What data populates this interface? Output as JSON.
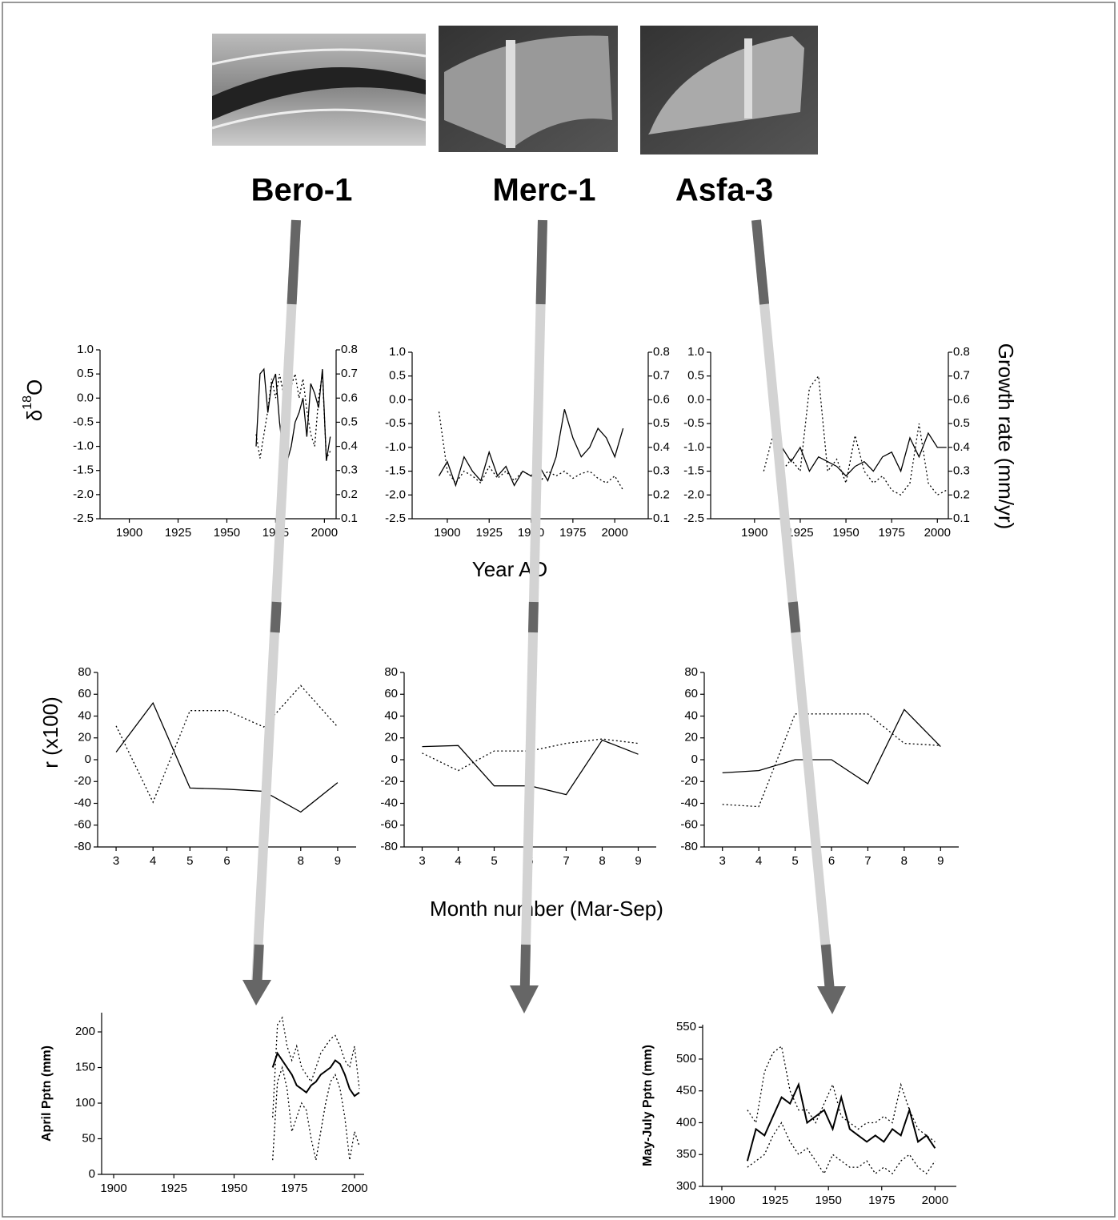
{
  "panels": [
    "Bero-1",
    "Merc-1",
    "Asfa-3"
  ],
  "labels": {
    "y_left": [
      "δ",
      "18",
      "O"
    ],
    "y_right": "Growth rate (mm/yr)",
    "x_top": "Year AD",
    "y_mid": "r (x100)",
    "x_mid": "Month number (Mar-Sep)"
  },
  "chart_data": [
    {
      "type": "line",
      "xlim": [
        1885,
        2006
      ],
      "xticks": [
        1900,
        1925,
        1950,
        1975,
        2000
      ],
      "ylim": [
        -2.5,
        1.0
      ],
      "yticks": [
        -2.5,
        {
          "value": -2,
          "label": "-2.0"
        },
        -1.5,
        {
          "value": -1,
          "label": "-1.0"
        },
        -0.5,
        {
          "value": 0,
          "label": "0.0"
        },
        0.5,
        {
          "value": 1,
          "label": "1.0"
        }
      ],
      "y2lim": [
        0.1,
        0.8
      ],
      "y2ticks": [
        0.1,
        0.2,
        0.3,
        0.4,
        0.5,
        0.6,
        0.7,
        0.8
      ],
      "series": [
        {
          "color": "#000000",
          "style": "solid",
          "x": [
            1965,
            1967,
            1969,
            1971,
            1973,
            1975,
            1977,
            1979,
            1981,
            1983,
            1985,
            1987,
            1989,
            1991,
            1993,
            1995,
            1997,
            1999,
            2001,
            2003
          ],
          "values": [
            -1.0,
            0.5,
            0.6,
            -0.3,
            0.3,
            0.5,
            -0.5,
            -1.2,
            -1.3,
            -1.0,
            -0.5,
            -0.3,
            0.0,
            -0.8,
            0.3,
            0.1,
            -0.2,
            0.6,
            -1.3,
            -0.8
          ]
        },
        {
          "color": "#000000",
          "style": "dotted",
          "axis": "y2",
          "x": [
            1965,
            1967,
            1969,
            1971,
            1973,
            1975,
            1977,
            1979,
            1981,
            1983,
            1985,
            1987,
            1989,
            1991,
            1993,
            1995,
            1997,
            1999,
            2001,
            2003
          ],
          "values": [
            0.45,
            0.35,
            0.45,
            0.55,
            0.68,
            0.6,
            0.7,
            0.62,
            0.72,
            0.65,
            0.7,
            0.6,
            0.68,
            0.55,
            0.45,
            0.4,
            0.6,
            0.7,
            0.35,
            0.38
          ]
        }
      ]
    },
    {
      "type": "line",
      "xlim": [
        1879,
        2020
      ],
      "xticks": [
        1900,
        1925,
        1950,
        1975,
        2000
      ],
      "ylim": [
        -2.5,
        1.0
      ],
      "yticks": [
        -2.5,
        {
          "value": -2,
          "label": "-2.0"
        },
        -1.5,
        {
          "value": -1,
          "label": "-1.0"
        },
        -0.5,
        {
          "value": 0,
          "label": "0.0"
        },
        0.5,
        {
          "value": 1,
          "label": "1.0"
        }
      ],
      "y2lim": [
        0.1,
        0.8
      ],
      "y2ticks": [
        0.1,
        0.2,
        0.3,
        0.4,
        0.5,
        0.6,
        0.7,
        0.8
      ],
      "series": [
        {
          "color": "#000000",
          "style": "solid",
          "x": [
            1895,
            1900,
            1905,
            1910,
            1915,
            1920,
            1925,
            1930,
            1935,
            1940,
            1945,
            1950,
            1955,
            1960,
            1965,
            1970,
            1975,
            1980,
            1985,
            1990,
            1995,
            2000,
            2005
          ],
          "values": [
            -1.6,
            -1.3,
            -1.8,
            -1.2,
            -1.5,
            -1.7,
            -1.1,
            -1.6,
            -1.4,
            -1.8,
            -1.5,
            -1.6,
            -1.4,
            -1.7,
            -1.2,
            -0.2,
            -0.8,
            -1.2,
            -1.0,
            -0.6,
            -0.8,
            -1.2,
            -0.6
          ]
        },
        {
          "color": "#000000",
          "style": "dotted",
          "axis": "y2",
          "x": [
            1895,
            1900,
            1905,
            1910,
            1915,
            1920,
            1925,
            1930,
            1935,
            1940,
            1945,
            1950,
            1955,
            1960,
            1965,
            1970,
            1975,
            1980,
            1985,
            1990,
            1995,
            2000,
            2005
          ],
          "values": [
            0.55,
            0.3,
            0.25,
            0.3,
            0.28,
            0.25,
            0.32,
            0.27,
            0.3,
            0.26,
            0.3,
            0.28,
            0.25,
            0.3,
            0.28,
            0.3,
            0.27,
            0.29,
            0.3,
            0.27,
            0.25,
            0.28,
            0.22
          ]
        }
      ]
    },
    {
      "type": "line",
      "xlim": [
        1876,
        2006
      ],
      "xticks": [
        1900,
        1925,
        1950,
        1975,
        2000
      ],
      "ylim": [
        -2.5,
        1.0
      ],
      "yticks": [
        -2.5,
        {
          "value": -2,
          "label": "-2.0"
        },
        -1.5,
        {
          "value": -1,
          "label": "-1.0"
        },
        -0.5,
        {
          "value": 0,
          "label": "0.0"
        },
        0.5,
        {
          "value": 1,
          "label": "1.0"
        }
      ],
      "y2lim": [
        0.1,
        0.8
      ],
      "y2ticks": [
        0.1,
        0.2,
        0.3,
        0.4,
        0.5,
        0.6,
        0.7,
        0.8
      ],
      "series": [
        {
          "color": "#000000",
          "style": "solid",
          "x": [
            1910,
            1915,
            1920,
            1925,
            1930,
            1935,
            1940,
            1945,
            1950,
            1955,
            1960,
            1965,
            1970,
            1975,
            1980,
            1985,
            1990,
            1995,
            2000,
            2005
          ],
          "values": [
            -0.6,
            -1.0,
            -1.3,
            -1.0,
            -1.5,
            -1.2,
            -1.3,
            -1.4,
            -1.6,
            -1.4,
            -1.3,
            -1.5,
            -1.2,
            -1.1,
            -1.5,
            -0.8,
            -1.2,
            -0.7,
            -1.0,
            -1.0
          ]
        },
        {
          "color": "#000000",
          "style": "dotted",
          "axis": "y2",
          "x": [
            1905,
            1910,
            1915,
            1920,
            1925,
            1930,
            1935,
            1940,
            1945,
            1950,
            1955,
            1960,
            1965,
            1970,
            1975,
            1980,
            1985,
            1990,
            1995,
            2000,
            2005
          ],
          "values": [
            0.3,
            0.45,
            0.3,
            0.35,
            0.3,
            0.65,
            0.7,
            0.3,
            0.35,
            0.25,
            0.45,
            0.3,
            0.25,
            0.28,
            0.22,
            0.2,
            0.25,
            0.5,
            0.25,
            0.2,
            0.22
          ]
        }
      ]
    },
    {
      "type": "line",
      "xlim": [
        2.5,
        9.5
      ],
      "x": [
        3,
        4,
        5,
        6,
        7,
        8,
        9
      ],
      "xticks": [
        3,
        4,
        5,
        6,
        7,
        8,
        9
      ],
      "ylim": [
        -80,
        80
      ],
      "yticks": [
        -80,
        -60,
        -40,
        -20,
        0,
        20,
        40,
        60,
        80
      ],
      "series": [
        {
          "color": "#000000",
          "style": "solid",
          "values": [
            7,
            52,
            -26,
            -27,
            -29,
            -48,
            -21
          ]
        },
        {
          "color": "#000000",
          "style": "dotted",
          "values": [
            31,
            -39,
            45,
            45,
            30,
            68,
            30
          ]
        }
      ]
    },
    {
      "type": "line",
      "xlim": [
        2.5,
        9.5
      ],
      "x": [
        3,
        4,
        5,
        6,
        7,
        8,
        9
      ],
      "xticks": [
        3,
        4,
        5,
        6,
        7,
        8,
        9
      ],
      "ylim": [
        -80,
        80
      ],
      "yticks": [
        -80,
        -60,
        -40,
        -20,
        0,
        20,
        40,
        60,
        80
      ],
      "series": [
        {
          "color": "#000000",
          "style": "solid",
          "values": [
            12,
            13,
            -24,
            -24,
            -32,
            18,
            5
          ]
        },
        {
          "color": "#000000",
          "style": "dotted",
          "values": [
            6,
            -10,
            8,
            8,
            15,
            19,
            15
          ]
        }
      ]
    },
    {
      "type": "line",
      "xlim": [
        2.5,
        9.5
      ],
      "x": [
        3,
        4,
        5,
        6,
        7,
        8,
        9
      ],
      "xticks": [
        3,
        4,
        5,
        6,
        7,
        8,
        9
      ],
      "ylim": [
        -80,
        80
      ],
      "yticks": [
        -80,
        -60,
        -40,
        -20,
        0,
        20,
        40,
        60,
        80
      ],
      "series": [
        {
          "color": "#000000",
          "style": "solid",
          "values": [
            -12,
            -10,
            0,
            0,
            -22,
            46,
            12
          ]
        },
        {
          "color": "#000000",
          "style": "dotted",
          "values": [
            -41,
            -43,
            42,
            42,
            42,
            15,
            13
          ]
        }
      ]
    },
    {
      "type": "line",
      "y_label": "April Pptn (mm)",
      "xlim": [
        1895,
        2004
      ],
      "xticks": [
        1900,
        1925,
        1950,
        1975,
        2000
      ],
      "ylim": [
        0,
        227
      ],
      "yticks": [
        0,
        50,
        100,
        150,
        200
      ],
      "x": [
        1966,
        1968,
        1970,
        1972,
        1974,
        1976,
        1978,
        1980,
        1982,
        1984,
        1986,
        1988,
        1990,
        1992,
        1994,
        1996,
        1998,
        2000,
        2002
      ],
      "series": [
        {
          "color": "#000000",
          "style": "solid",
          "values": [
            150,
            170,
            160,
            150,
            140,
            125,
            120,
            115,
            125,
            130,
            140,
            145,
            150,
            160,
            155,
            140,
            120,
            110,
            115
          ]
        },
        {
          "color": "#000000",
          "style": "dotted",
          "values": [
            80,
            210,
            220,
            180,
            160,
            180,
            150,
            140,
            130,
            150,
            170,
            180,
            190,
            195,
            180,
            160,
            150,
            180,
            120
          ]
        },
        {
          "color": "#000000",
          "style": "dotted",
          "values": [
            20,
            130,
            150,
            120,
            60,
            80,
            100,
            90,
            50,
            20,
            60,
            100,
            130,
            140,
            120,
            80,
            20,
            60,
            40
          ]
        }
      ]
    },
    {
      "type": "line",
      "y_label": "May-July Pptn (mm)",
      "xlim": [
        1891,
        2010
      ],
      "xticks": [
        1900,
        1925,
        1950,
        1975,
        2000
      ],
      "ylim": [
        300,
        554
      ],
      "yticks": [
        300,
        350,
        400,
        450,
        500,
        550
      ],
      "x": [
        1912,
        1916,
        1920,
        1924,
        1928,
        1932,
        1936,
        1940,
        1944,
        1948,
        1952,
        1956,
        1960,
        1964,
        1968,
        1972,
        1976,
        1980,
        1984,
        1988,
        1992,
        1996,
        2000
      ],
      "series": [
        {
          "color": "#000000",
          "style": "solid",
          "values": [
            340,
            390,
            380,
            410,
            440,
            430,
            460,
            400,
            410,
            420,
            390,
            440,
            390,
            380,
            370,
            380,
            370,
            390,
            380,
            420,
            370,
            380,
            360
          ]
        },
        {
          "color": "#000000",
          "style": "dotted",
          "values": [
            420,
            400,
            480,
            510,
            520,
            450,
            420,
            420,
            400,
            430,
            460,
            410,
            400,
            390,
            400,
            400,
            410,
            400,
            460,
            420,
            390,
            380,
            370
          ]
        },
        {
          "color": "#000000",
          "style": "dotted",
          "values": [
            330,
            340,
            350,
            380,
            400,
            370,
            350,
            360,
            340,
            320,
            350,
            340,
            330,
            330,
            340,
            320,
            330,
            320,
            340,
            350,
            330,
            320,
            340
          ]
        }
      ]
    }
  ]
}
